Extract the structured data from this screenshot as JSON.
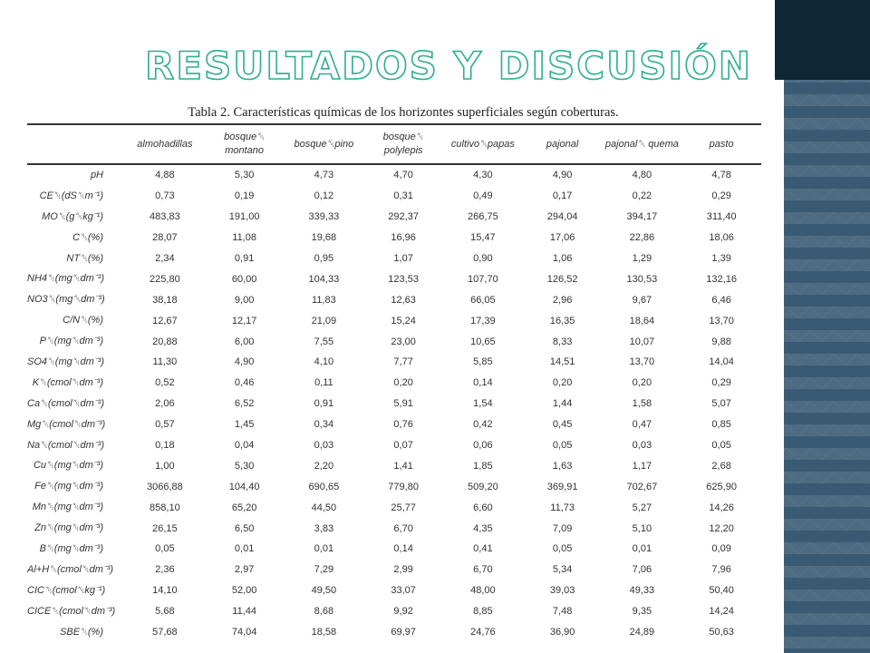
{
  "title": "RESULTADOS Y DISCUSIÓN",
  "table": {
    "caption": "Tabla 2. Características químicas de los horizontes superficiales según coberturas.",
    "columns": [
      "",
      "almohadillas",
      "bosque␀ montano",
      "bosque␀pino",
      "bosque␀ polylepis",
      "cultivo␀papas",
      "pajonal",
      "pajonal␀ quema",
      "pasto"
    ],
    "rows": [
      [
        "pH",
        "4,88",
        "5,30",
        "4,73",
        "4,70",
        "4,30",
        "4,90",
        "4,80",
        "4,78"
      ],
      [
        "CE␀(dS␀m⁻¹)",
        "0,73",
        "0,19",
        "0,12",
        "0,31",
        "0,49",
        "0,17",
        "0,22",
        "0,29"
      ],
      [
        "MO␀(g␀kg⁻¹)",
        "483,83",
        "191,00",
        "339,33",
        "292,37",
        "266,75",
        "294,04",
        "394,17",
        "311,40"
      ],
      [
        "C␀(%)",
        "28,07",
        "11,08",
        "19,68",
        "16,96",
        "15,47",
        "17,06",
        "22,86",
        "18,06"
      ],
      [
        "NT␀(%)",
        "2,34",
        "0,91",
        "0,95",
        "1,07",
        "0,90",
        "1,06",
        "1,29",
        "1,39"
      ],
      [
        "NH4␀(mg␀dm⁻³)",
        "225,80",
        "60,00",
        "104,33",
        "123,53",
        "107,70",
        "126,52",
        "130,53",
        "132,16"
      ],
      [
        "NO3␀(mg␀dm⁻³)",
        "38,18",
        "9,00",
        "11,83",
        "12,63",
        "66,05",
        "2,96",
        "9,67",
        "6,46"
      ],
      [
        "C/N␀(%)",
        "12,67",
        "12,17",
        "21,09",
        "15,24",
        "17,39",
        "16,35",
        "18,64",
        "13,70"
      ],
      [
        "P␀(mg␀dm⁻³)",
        "20,88",
        "6,00",
        "7,55",
        "23,00",
        "10,65",
        "8,33",
        "10,07",
        "9,88"
      ],
      [
        "SO4␀(mg␀dm⁻³)",
        "11,30",
        "4,90",
        "4,10",
        "7,77",
        "5,85",
        "14,51",
        "13,70",
        "14,04"
      ],
      [
        "K␀(cmol␀dm⁻³)",
        "0,52",
        "0,46",
        "0,11",
        "0,20",
        "0,14",
        "0,20",
        "0,20",
        "0,29"
      ],
      [
        "Ca␀(cmol␀dm⁻³)",
        "2,06",
        "6,52",
        "0,91",
        "5,91",
        "1,54",
        "1,44",
        "1,58",
        "5,07"
      ],
      [
        "Mg␀(cmol␀dm⁻³)",
        "0,57",
        "1,45",
        "0,34",
        "0,76",
        "0,42",
        "0,45",
        "0,47",
        "0,85"
      ],
      [
        "Na␀(cmol␀dm⁻³)",
        "0,18",
        "0,04",
        "0,03",
        "0,07",
        "0,06",
        "0,05",
        "0,03",
        "0,05"
      ],
      [
        "Cu␀(mg␀dm⁻³)",
        "1,00",
        "5,30",
        "2,20",
        "1,41",
        "1,85",
        "1,63",
        "1,17",
        "2,68"
      ],
      [
        "Fe␀(mg␀dm⁻³)",
        "3066,88",
        "104,40",
        "690,65",
        "779,80",
        "509,20",
        "369,91",
        "702,67",
        "625,90"
      ],
      [
        "Mn␀(mg␀dm⁻³)",
        "858,10",
        "65,20",
        "44,50",
        "25,77",
        "6,60",
        "11,73",
        "5,27",
        "14,26"
      ],
      [
        "Zn␀(mg␀dm⁻³)",
        "26,15",
        "6,50",
        "3,83",
        "6,70",
        "4,35",
        "7,09",
        "5,10",
        "12,20"
      ],
      [
        "B␀(mg␀dm⁻³)",
        "0,05",
        "0,01",
        "0,01",
        "0,14",
        "0,41",
        "0,05",
        "0,01",
        "0,09"
      ],
      [
        "Al+H␀(cmol␀dm⁻³)",
        "2,36",
        "2,97",
        "7,29",
        "2,99",
        "6,70",
        "5,34",
        "7,06",
        "7,96"
      ],
      [
        "CIC␀(cmol␀kg⁻¹)",
        "14,10",
        "52,00",
        "49,50",
        "33,07",
        "48,00",
        "39,03",
        "49,33",
        "50,40"
      ],
      [
        "CICE␀(cmol␀dm⁻³)",
        "5,68",
        "11,44",
        "8,68",
        "9,92",
        "8,85",
        "7,48",
        "9,35",
        "14,24"
      ],
      [
        "SBE␀(%)",
        "57,68",
        "74,04",
        "18,58",
        "69,97",
        "24,76",
        "36,90",
        "24,89",
        "50,63"
      ]
    ]
  }
}
